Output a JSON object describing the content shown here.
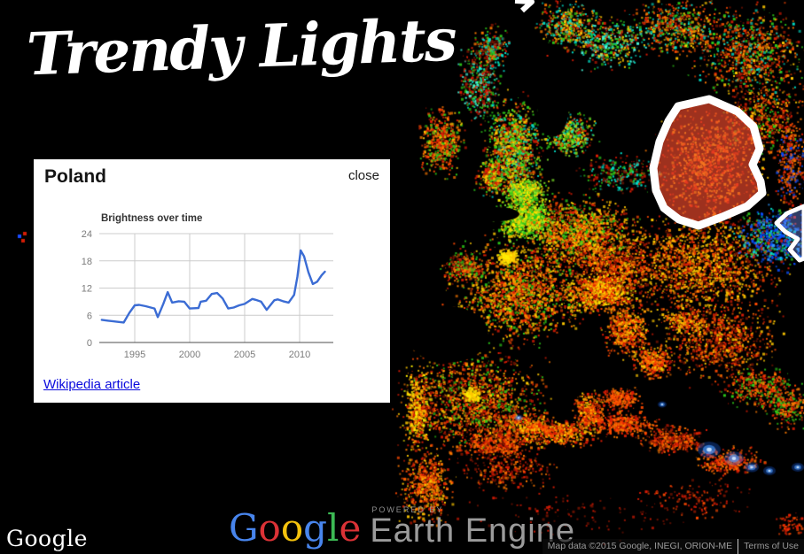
{
  "app": {
    "title": "Trendy Lights"
  },
  "panel": {
    "region_title": "Poland",
    "close_label": "close",
    "wikipedia_link": "Wikipedia article"
  },
  "chart_data": {
    "type": "line",
    "title": "Brightness over time",
    "xlabel": "",
    "ylabel": "",
    "grid": true,
    "legend_position": "none",
    "xlim": [
      1991.8,
      2012.4
    ],
    "ylim": [
      0,
      24
    ],
    "x_ticks": [
      1995,
      2000,
      2005,
      2010
    ],
    "y_ticks": [
      0,
      6,
      12,
      18,
      24
    ],
    "series": [
      {
        "name": "Brightness",
        "color": "#3b6cd4",
        "points": [
          [
            1992.0,
            5.0
          ],
          [
            1992.6,
            4.8
          ],
          [
            1993.3,
            4.6
          ],
          [
            1994.0,
            4.4
          ],
          [
            1994.5,
            6.5
          ],
          [
            1995.0,
            8.2
          ],
          [
            1995.4,
            8.3
          ],
          [
            1996.0,
            8.0
          ],
          [
            1996.8,
            7.5
          ],
          [
            1997.1,
            5.6
          ],
          [
            1997.6,
            8.5
          ],
          [
            1998.0,
            11.1
          ],
          [
            1998.4,
            8.8
          ],
          [
            1999.0,
            9.1
          ],
          [
            1999.5,
            9.0
          ],
          [
            2000.0,
            7.5
          ],
          [
            2000.8,
            7.6
          ],
          [
            2001.0,
            9.0
          ],
          [
            2001.5,
            9.2
          ],
          [
            2002.0,
            10.7
          ],
          [
            2002.5,
            10.9
          ],
          [
            2003.0,
            9.7
          ],
          [
            2003.5,
            7.5
          ],
          [
            2004.0,
            7.7
          ],
          [
            2004.5,
            8.2
          ],
          [
            2005.0,
            8.5
          ],
          [
            2005.7,
            9.6
          ],
          [
            2006.0,
            9.4
          ],
          [
            2006.5,
            9.0
          ],
          [
            2007.0,
            7.2
          ],
          [
            2007.7,
            9.3
          ],
          [
            2008.0,
            9.5
          ],
          [
            2008.5,
            9.1
          ],
          [
            2009.0,
            8.8
          ],
          [
            2009.5,
            10.5
          ],
          [
            2009.8,
            14.5
          ],
          [
            2010.1,
            20.3
          ],
          [
            2010.4,
            19.0
          ],
          [
            2010.8,
            15.5
          ],
          [
            2011.2,
            12.9
          ],
          [
            2011.6,
            13.4
          ],
          [
            2012.0,
            14.8
          ],
          [
            2012.3,
            15.6
          ]
        ]
      }
    ]
  },
  "branding": {
    "powered_by_label": "POWERED BY",
    "product_name": "Earth Engine",
    "map_watermark": "Google",
    "google_logo_letters": [
      [
        "G",
        "#4885ed"
      ],
      [
        "o",
        "#db3236"
      ],
      [
        "o",
        "#f4c20d"
      ],
      [
        "g",
        "#4885ed"
      ],
      [
        "l",
        "#3cba54"
      ],
      [
        "e",
        "#db3236"
      ]
    ]
  },
  "attribution": {
    "map_data": "Map data ©2015 Google, INEGI, ORION-ME",
    "terms_of_use": "Terms of Use"
  },
  "map": {
    "highlight_region": "Poland",
    "highlight_stroke_color": "#ffffff",
    "highlight_fill_color": "#f04b2d"
  }
}
